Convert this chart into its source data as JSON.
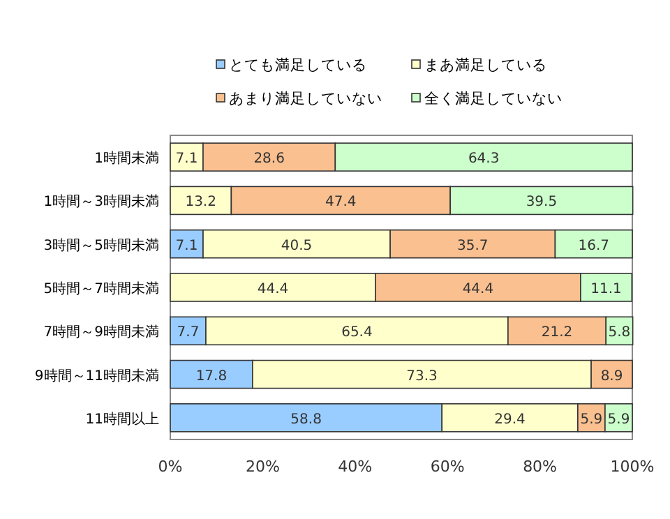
{
  "chart_data": {
    "type": "bar",
    "orientation": "horizontal",
    "stacked": true,
    "data_labels": true,
    "legend": "top",
    "categories": [
      "1時間未満",
      "1時間～3時間未満",
      "3時間～5時間未満",
      "5時間～7時間未満",
      "7時間～9時間未満",
      "9時間～11時間未満",
      "11時間以上"
    ],
    "series": [
      {
        "name": "とても満足している",
        "color": "#99ccff",
        "values": [
          null,
          null,
          7.1,
          null,
          7.7,
          17.8,
          58.8
        ]
      },
      {
        "name": "まあ満足している",
        "color": "#ffffcc",
        "values": [
          7.1,
          13.2,
          40.5,
          44.4,
          65.4,
          73.3,
          29.4
        ]
      },
      {
        "name": "あまり満足していない",
        "color": "#fac090",
        "values": [
          28.6,
          47.4,
          35.7,
          44.4,
          21.2,
          8.9,
          5.9
        ]
      },
      {
        "name": "全く満足していない",
        "color": "#ccffcc",
        "values": [
          64.3,
          39.5,
          16.7,
          11.1,
          5.8,
          null,
          5.9
        ]
      }
    ],
    "xlim": [
      0,
      100
    ],
    "xticks": [
      {
        "value": 0,
        "label": "0%"
      },
      {
        "value": 20,
        "label": "20%"
      },
      {
        "value": 40,
        "label": "40%"
      },
      {
        "value": 60,
        "label": "60%"
      },
      {
        "value": 80,
        "label": "80%"
      },
      {
        "value": 100,
        "label": "100%"
      }
    ]
  }
}
